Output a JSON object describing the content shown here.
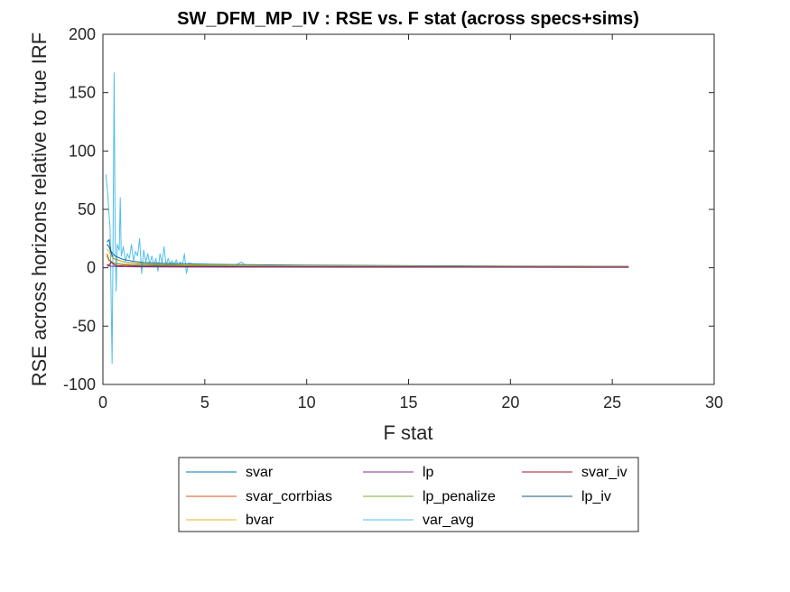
{
  "chart_data": {
    "type": "line",
    "title": "SW_DFM_MP_IV : RSE vs. F stat (across specs+sims)",
    "xlabel": "F stat",
    "ylabel": "RSE across horizons relative to true IRF",
    "xlim": [
      0,
      30
    ],
    "ylim": [
      -100,
      200
    ],
    "xticks": [
      0,
      5,
      10,
      15,
      20,
      25,
      30
    ],
    "yticks": [
      -100,
      -50,
      0,
      50,
      100,
      150,
      200
    ],
    "grid": false,
    "legend_position": "bottom",
    "series": [
      {
        "name": "svar",
        "color": "#0072BD",
        "x": [
          0.2,
          0.3,
          0.4,
          0.6,
          1.0,
          1.5,
          2,
          3,
          4,
          5,
          7,
          10,
          15,
          20,
          25.8
        ],
        "y": [
          22,
          24,
          14,
          10,
          7,
          5.5,
          4.5,
          3.8,
          3.4,
          3.0,
          2.6,
          2.2,
          1.8,
          1.5,
          1.2
        ]
      },
      {
        "name": "lp",
        "color": "#7E2F8E",
        "x": [
          0.2,
          0.5,
          1,
          2,
          4,
          8,
          15,
          25.8
        ],
        "y": [
          1.5,
          1.2,
          0.9,
          0.7,
          0.6,
          0.5,
          0.4,
          0.3
        ]
      },
      {
        "name": "svar_iv",
        "color": "#A2142F",
        "x": [
          0.2,
          0.3,
          0.4,
          0.6,
          1,
          2,
          4,
          8,
          15,
          25.8
        ],
        "y": [
          3,
          2,
          5,
          2,
          1.5,
          1.2,
          1.0,
          0.8,
          0.7,
          0.5
        ]
      },
      {
        "name": "svar_corrbias",
        "color": "#D95319",
        "x": [
          0.2,
          0.3,
          0.5,
          1,
          2,
          4,
          8,
          15,
          25.8
        ],
        "y": [
          12,
          7,
          4,
          2.5,
          1.8,
          1.4,
          1.1,
          0.9,
          0.6
        ]
      },
      {
        "name": "lp_penalize",
        "color": "#77AC30",
        "x": [
          0.2,
          0.3,
          0.5,
          1,
          2,
          4,
          8,
          15,
          25.8
        ],
        "y": [
          10,
          6,
          4,
          3,
          2,
          1.6,
          1.2,
          1.0,
          0.8
        ]
      },
      {
        "name": "lp_iv",
        "color": "#0C5B7A",
        "x": [
          0.2,
          0.3,
          0.5,
          1,
          2,
          4,
          8,
          15,
          25.8
        ],
        "y": [
          20,
          18,
          8,
          5,
          3,
          2,
          1.5,
          1.2,
          1.0
        ]
      },
      {
        "name": "bvar",
        "color": "#EDB120",
        "x": [
          0.2,
          0.3,
          0.4,
          0.6,
          1,
          2,
          4,
          8,
          15,
          25.8
        ],
        "y": [
          16,
          14,
          10,
          7,
          5,
          3.5,
          2.5,
          1.8,
          1.4,
          1.1
        ]
      },
      {
        "name": "var_avg",
        "color": "#4DBEEE",
        "x": [
          0.15,
          0.25,
          0.3,
          0.35,
          0.45,
          0.5,
          0.55,
          0.6,
          0.65,
          0.7,
          0.8,
          0.85,
          0.9,
          1.0,
          1.1,
          1.2,
          1.3,
          1.4,
          1.5,
          1.6,
          1.7,
          1.8,
          1.9,
          2.0,
          2.1,
          2.2,
          2.3,
          2.4,
          2.5,
          2.6,
          2.7,
          2.8,
          2.9,
          3.0,
          3.1,
          3.2,
          3.3,
          3.4,
          3.5,
          3.6,
          3.7,
          3.8,
          3.9,
          4.0,
          4.1,
          4.2,
          4.5,
          5,
          5.5,
          6,
          6.5,
          6.8,
          7,
          8,
          9,
          10,
          12,
          14,
          16,
          18,
          20,
          22,
          24,
          25.8
        ],
        "y": [
          80,
          60,
          45,
          35,
          -82,
          30,
          167,
          25,
          -20,
          20,
          15,
          60,
          10,
          18,
          5,
          12,
          8,
          20,
          6,
          14,
          10,
          25,
          -5,
          15,
          5,
          12,
          3,
          10,
          2,
          8,
          -3,
          12,
          4,
          18,
          2,
          8,
          3,
          6,
          2,
          7,
          1,
          5,
          2,
          12,
          -5,
          4,
          3,
          3,
          2.5,
          2,
          2,
          5,
          1.8,
          1.8,
          1.6,
          1.5,
          1.4,
          1.3,
          1.2,
          1.1,
          1.0,
          1.0,
          0.9,
          0.9
        ]
      }
    ]
  }
}
